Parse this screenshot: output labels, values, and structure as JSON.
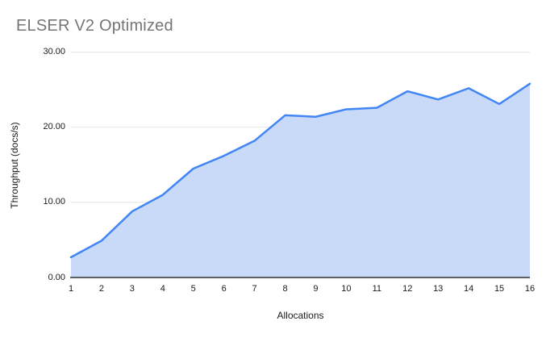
{
  "chart_data": {
    "type": "area",
    "title": "ELSER V2 Optimized",
    "xlabel": "Allocations",
    "ylabel": "Throughput (docs/s)",
    "x": [
      "1",
      "2",
      "3",
      "4",
      "5",
      "6",
      "7",
      "8",
      "9",
      "10",
      "11",
      "12",
      "13",
      "14",
      "15",
      "16"
    ],
    "series": [
      {
        "name": "Throughput (docs/s)",
        "values": [
          2.7,
          4.9,
          8.8,
          11.0,
          14.5,
          16.2,
          18.2,
          21.6,
          21.4,
          22.4,
          22.6,
          24.8,
          23.7,
          25.2,
          23.1,
          25.8
        ]
      }
    ],
    "ylim": [
      0,
      30
    ],
    "yticks": [
      "0.00",
      "10.00",
      "20.00",
      "30.00"
    ],
    "grid": "horizontal",
    "legend": "none",
    "colors": {
      "line": "#4285f4",
      "fill": "#c8daf8",
      "grid": "#e3e3e3",
      "axis": "#333333",
      "title": "#757575",
      "labels": "#1a1a1a"
    }
  }
}
